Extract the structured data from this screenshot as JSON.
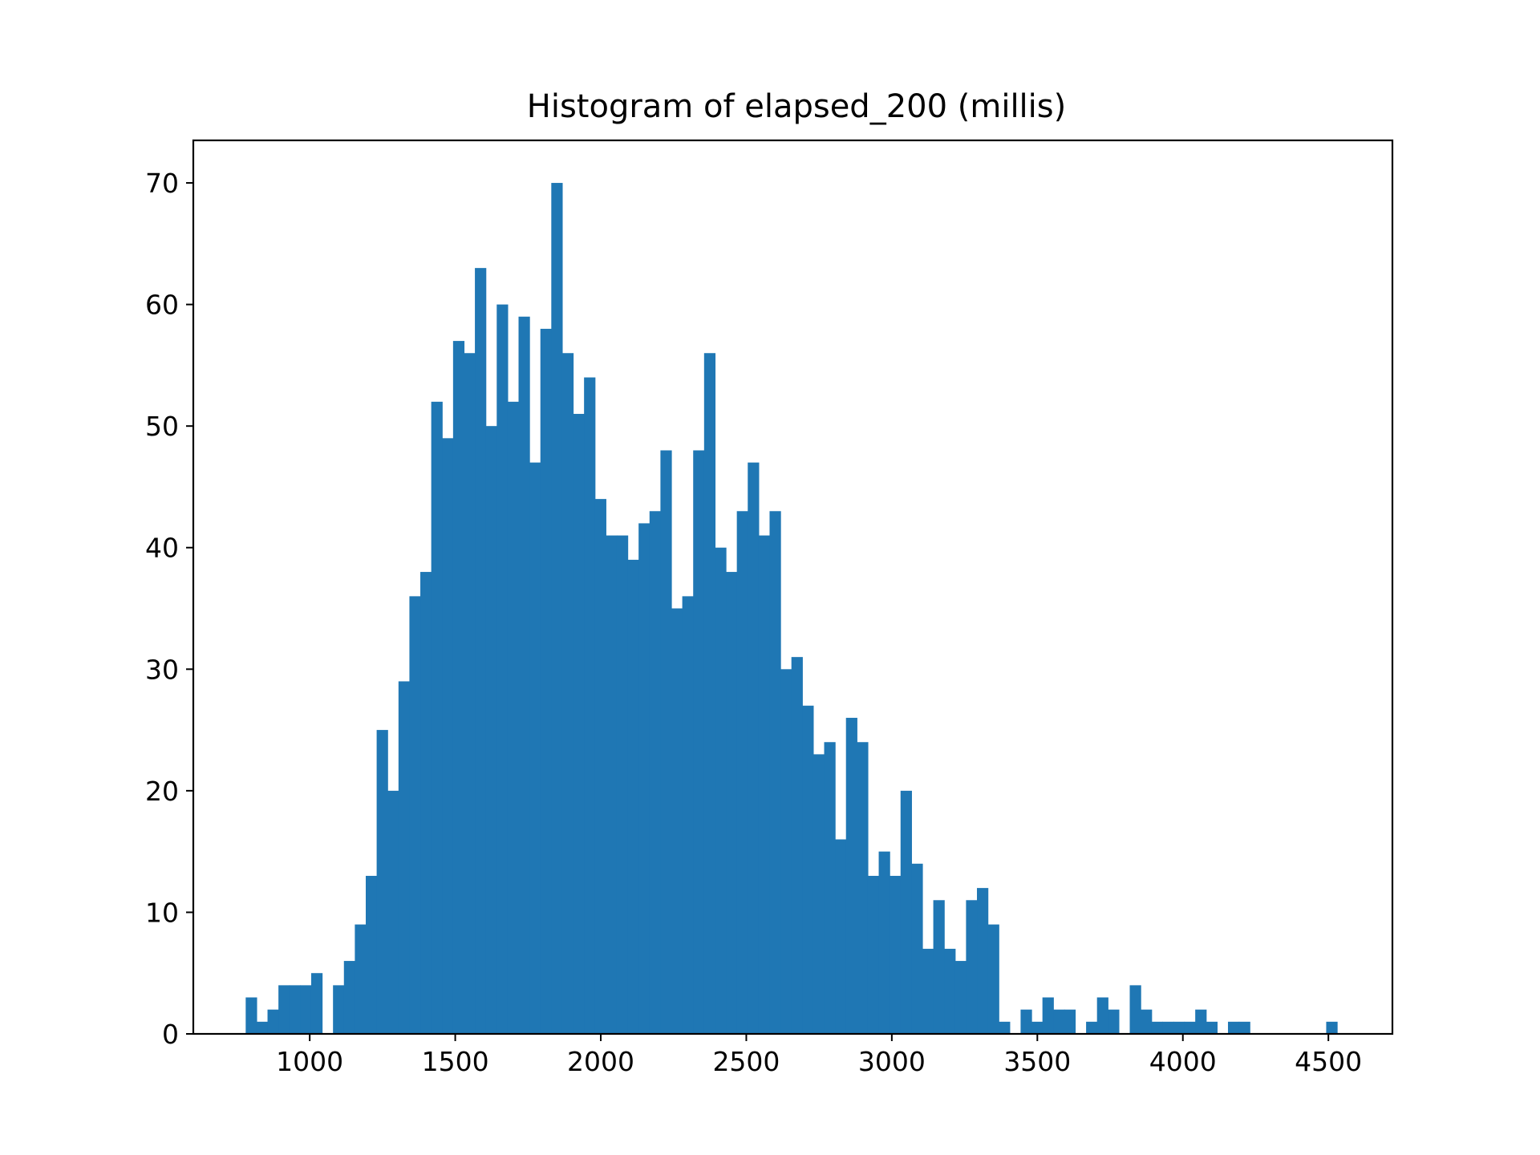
{
  "chart_data": {
    "type": "bar",
    "title": "Histogram of elapsed_200 (millis)",
    "xlabel": "",
    "ylabel": "",
    "xlim": [
      600,
      4720
    ],
    "ylim": [
      0,
      73.5
    ],
    "x_ticks": [
      "1000",
      "1500",
      "2000",
      "2500",
      "3000",
      "3500",
      "4000",
      "4500"
    ],
    "y_ticks": [
      "0",
      "10",
      "20",
      "30",
      "40",
      "50",
      "60",
      "70"
    ],
    "bin_start": 780,
    "bin_width": 37.5,
    "values": [
      3,
      1,
      2,
      4,
      4,
      4,
      5,
      0,
      4,
      6,
      9,
      13,
      25,
      20,
      29,
      36,
      38,
      52,
      49,
      57,
      56,
      63,
      50,
      60,
      52,
      59,
      47,
      58,
      70,
      56,
      51,
      54,
      44,
      41,
      41,
      39,
      42,
      43,
      48,
      35,
      36,
      48,
      56,
      40,
      38,
      43,
      47,
      41,
      43,
      30,
      31,
      27,
      23,
      24,
      16,
      26,
      24,
      13,
      15,
      13,
      20,
      14,
      7,
      11,
      7,
      6,
      11,
      12,
      9,
      1,
      0,
      2,
      1,
      3,
      2,
      2,
      0,
      1,
      3,
      2,
      0,
      4,
      2,
      1,
      1,
      1,
      1,
      2,
      1,
      0,
      1,
      1,
      0,
      0,
      0,
      0,
      0,
      0,
      0,
      1
    ],
    "bar_color": "#1f77b4",
    "grid": false,
    "legend": "none"
  }
}
